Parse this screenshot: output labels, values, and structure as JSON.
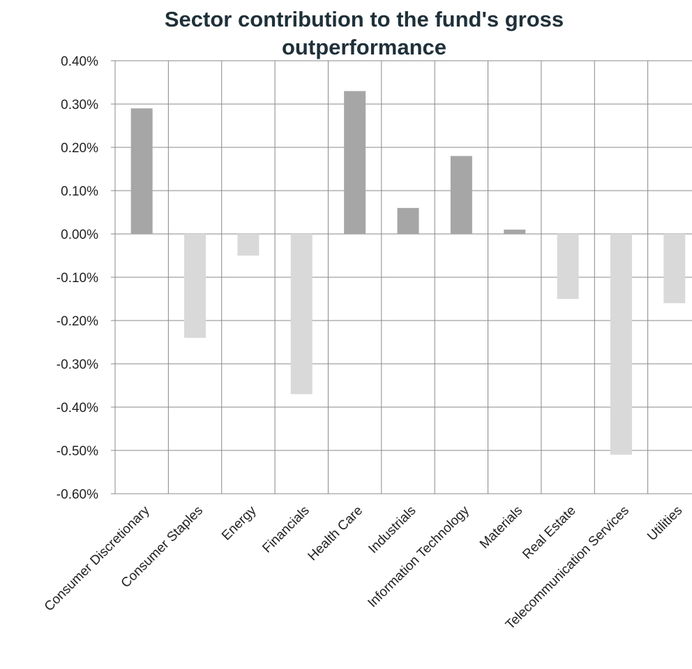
{
  "chart_data": {
    "type": "bar",
    "title": "Sector  contribution to the fund's gross\noutperformance",
    "categories": [
      "Consumer Discretionary",
      "Consumer Staples",
      "Energy",
      "Financials",
      "Health Care",
      "Industrials",
      "Information Technology",
      "Materials",
      "Real Estate",
      "Telecommunication Services",
      "Utilities"
    ],
    "values": [
      0.29,
      -0.24,
      -0.05,
      -0.37,
      0.33,
      0.06,
      0.18,
      0.01,
      -0.15,
      -0.51,
      -0.16
    ],
    "value_unit": "%",
    "ylim": [
      -0.6,
      0.4
    ],
    "yticks": [
      "0.40%",
      "0.30%",
      "0.20%",
      "0.10%",
      "0.00%",
      "-0.10%",
      "-0.20%",
      "-0.30%",
      "-0.40%",
      "-0.50%",
      "-0.60%"
    ],
    "grid": true,
    "legend": "none",
    "colors": {
      "positive": "#a6a6a6",
      "negative": "#d9d9d9",
      "grid": "#888888"
    }
  }
}
